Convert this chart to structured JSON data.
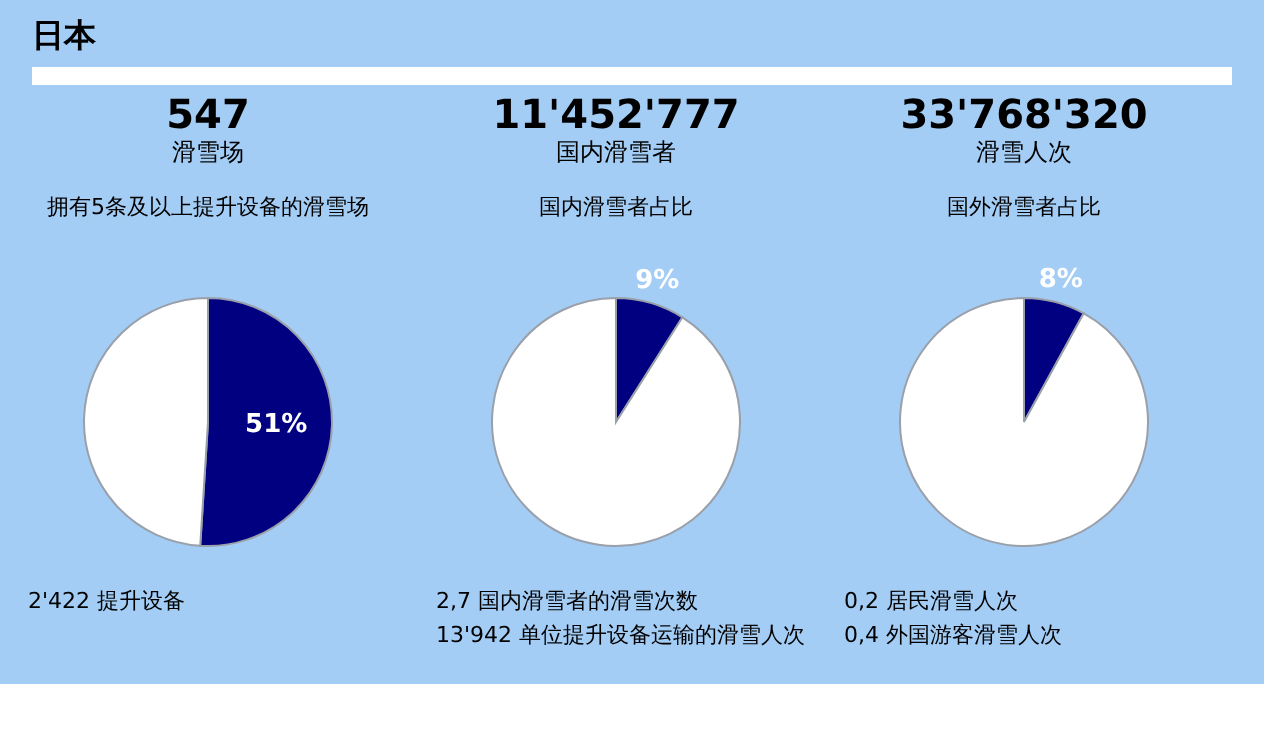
{
  "chart_data": [
    {
      "type": "other",
      "title": "日本"
    },
    {
      "type": "pie",
      "title": "547",
      "subtitle": "滑雪场",
      "categories": [
        null,
        null
      ],
      "values": [
        51,
        49
      ],
      "colors": [
        "#000080",
        "#ffffff"
      ],
      "value_labels": [
        "51%",
        null
      ],
      "annotations": [
        "拥有5条及以上提升设备的滑雪场",
        "2'422   提升设备"
      ]
    },
    {
      "type": "pie",
      "title": "11'452'777",
      "subtitle": "国内滑雪者",
      "categories": [
        null,
        null
      ],
      "values": [
        9,
        91
      ],
      "colors": [
        "#000080",
        "#ffffff"
      ],
      "value_labels": [
        "9%",
        null
      ],
      "annotations": [
        "国内滑雪者占比",
        "2,7   国内滑雪者的滑雪次数",
        "13'942 单位提升设备运输的滑雪人次"
      ]
    },
    {
      "type": "pie",
      "title": "33'768'320",
      "subtitle": "滑雪人次",
      "categories": [
        null,
        null
      ],
      "values": [
        8,
        92
      ],
      "colors": [
        "#000080",
        "#ffffff"
      ],
      "value_labels": [
        "8%",
        null
      ],
      "annotations": [
        "国外滑雪者占比",
        "0,2   居民滑雪人次",
        "0,4   外国游客滑雪人次"
      ]
    }
  ]
}
